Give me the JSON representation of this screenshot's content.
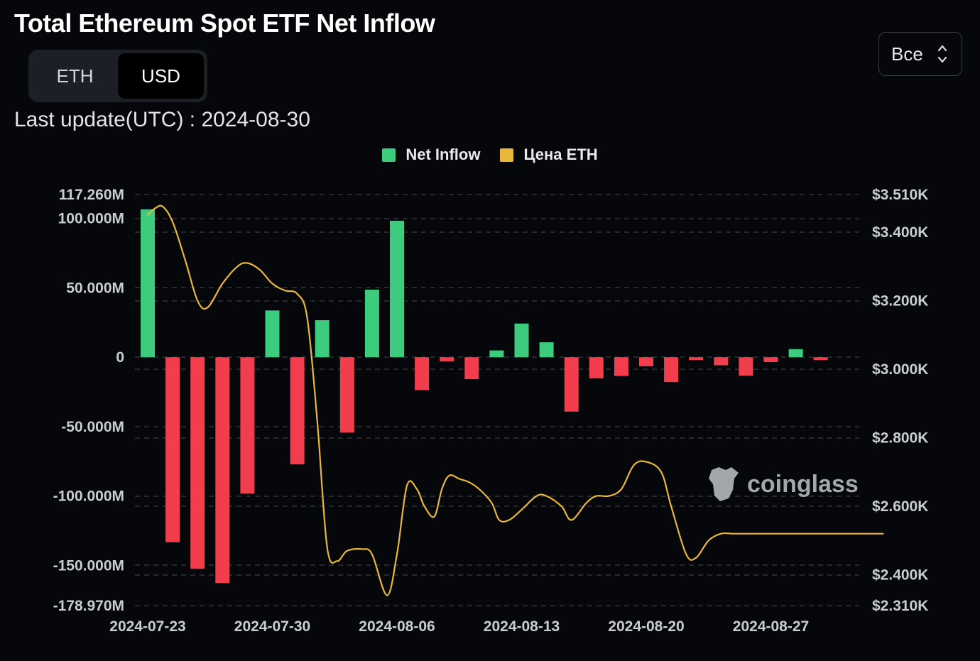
{
  "header": {
    "title": "Total Ethereum Spot ETF Net Inflow",
    "last_update": "Last update(UTC) : 2024-08-30"
  },
  "unit_toggle": {
    "options": [
      "ETH",
      "USD"
    ],
    "selected": "USD"
  },
  "range_select": {
    "value": "Все"
  },
  "watermark": "coinglass",
  "colors": {
    "positive": "#3dcc7e",
    "negative": "#f13d4c",
    "price_line": "#e9b83a",
    "grid": "#3a3d44",
    "background": "#05070b"
  },
  "chart_data": {
    "type": "bar",
    "title": "Total Ethereum Spot ETF Net Inflow",
    "legend": [
      "Net Inflow",
      "Цена ETH"
    ],
    "legend_position": "top-center",
    "x": [
      "2024-07-23",
      "2024-07-24",
      "2024-07-25",
      "2024-07-26",
      "2024-07-29",
      "2024-07-30",
      "2024-07-31",
      "2024-08-01",
      "2024-08-02",
      "2024-08-05",
      "2024-08-06",
      "2024-08-07",
      "2024-08-08",
      "2024-08-09",
      "2024-08-12",
      "2024-08-13",
      "2024-08-14",
      "2024-08-15",
      "2024-08-16",
      "2024-08-19",
      "2024-08-20",
      "2024-08-21",
      "2024-08-22",
      "2024-08-23",
      "2024-08-26",
      "2024-08-27",
      "2024-08-28",
      "2024-08-29",
      "2024-08-30"
    ],
    "x_tick_labels": [
      "2024-07-23",
      "2024-07-30",
      "2024-08-06",
      "2024-08-13",
      "2024-08-20",
      "2024-08-27"
    ],
    "series": [
      {
        "name": "Net Inflow",
        "axis": "left",
        "unit": "USD",
        "values": [
          106.6,
          -133.3,
          -152.3,
          -162.7,
          -98.3,
          33.7,
          -77.2,
          26.7,
          -54.3,
          48.7,
          98.4,
          -23.7,
          -2.9,
          -15.8,
          4.9,
          24.3,
          10.8,
          -39.2,
          -15.1,
          -13.5,
          -6.5,
          -17.9,
          -0.1,
          -5.8,
          -13.2,
          -3.5,
          5.9,
          -1.8,
          0.0
        ]
      },
      {
        "name": "Цена ETH",
        "axis": "right",
        "unit": "USD",
        "type": "line",
        "x": [
          0,
          0.3,
          0.6,
          1.0,
          1.5,
          2.0,
          2.4,
          3.0,
          3.6,
          4.0,
          4.5,
          5.0,
          5.5,
          6.0,
          6.4,
          6.8,
          7.2,
          7.6,
          8.0,
          8.6,
          9.0,
          9.6,
          10.0,
          10.4,
          10.8,
          11.1,
          11.5,
          11.8,
          12.1,
          12.5,
          12.9,
          13.3,
          13.8,
          14.1,
          14.5,
          15.0,
          15.6,
          16.0,
          16.6,
          17.0,
          17.6,
          18.0,
          18.5,
          19.0,
          19.5,
          20.0,
          20.6,
          21.0,
          21.6,
          22.0,
          22.5,
          23.0,
          23.5,
          24.0,
          24.5,
          25.0,
          25.4,
          25.8,
          26.2,
          26.6,
          27.0,
          27.5,
          28.0,
          28.6,
          29.0,
          29.5
        ],
        "values": [
          3450,
          3470,
          3475,
          3430,
          3320,
          3200,
          3180,
          3250,
          3300,
          3310,
          3290,
          3250,
          3230,
          3220,
          3150,
          2850,
          2480,
          2440,
          2470,
          2475,
          2460,
          2340,
          2460,
          2660,
          2650,
          2600,
          2570,
          2650,
          2690,
          2680,
          2670,
          2650,
          2610,
          2560,
          2560,
          2590,
          2630,
          2630,
          2600,
          2560,
          2610,
          2630,
          2630,
          2650,
          2720,
          2730,
          2700,
          2600,
          2460,
          2450,
          2500,
          2520,
          2520,
          2520,
          2520,
          2520,
          2520,
          2520,
          2520,
          2520,
          2520,
          2520,
          2520,
          2520,
          2520,
          2520
        ]
      }
    ],
    "ylim_left": [
      -178.97,
      117.26
    ],
    "yticks_left": [
      "117.260M",
      "100.000M",
      "50.000M",
      "0",
      "-50.000M",
      "-100.000M",
      "-150.000M",
      "-178.970M"
    ],
    "ytick_values_left": [
      117.26,
      100,
      50,
      0,
      -50,
      -100,
      -150,
      -178.97
    ],
    "ylim_right": [
      2310,
      3510
    ],
    "yticks_right": [
      "$3.510K",
      "$3.400K",
      "$3.200K",
      "$3.000K",
      "$2.800K",
      "$2.600K",
      "$2.400K",
      "$2.310K"
    ],
    "ytick_values_right": [
      3510,
      3400,
      3200,
      3000,
      2800,
      2600,
      2400,
      2310
    ],
    "grid": true
  }
}
